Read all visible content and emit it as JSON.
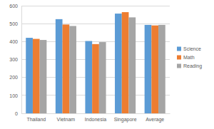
{
  "chart_data": {
    "type": "bar",
    "categories": [
      "Thailand",
      "Vietnam",
      "Indonesia",
      "Singapore",
      "Average"
    ],
    "series": [
      {
        "name": "Science",
        "color": "#5b9bd5",
        "values": [
          421,
          525,
          403,
          556,
          493
        ]
      },
      {
        "name": "Math",
        "color": "#ed7d31",
        "values": [
          415,
          495,
          386,
          564,
          490
        ]
      },
      {
        "name": "Reading",
        "color": "#a5a5a5",
        "values": [
          409,
          487,
          397,
          535,
          493
        ]
      }
    ],
    "ylim": [
      0,
      600
    ],
    "yticks": [
      0,
      100,
      200,
      300,
      400,
      500,
      600
    ],
    "grid": true,
    "legend": "right"
  }
}
